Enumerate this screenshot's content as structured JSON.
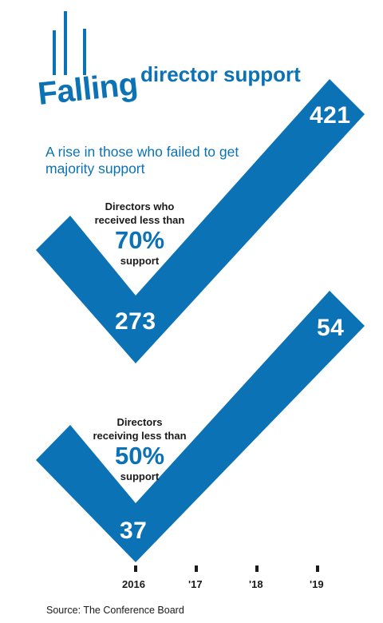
{
  "title": {
    "word1": "Falling",
    "word2": "director support"
  },
  "subtitle": "A rise in those who failed to get majority support",
  "source": "Source: The Conference Board",
  "colors": {
    "accent": "#0b72b5",
    "text": "#1a1a1a"
  },
  "chart_data": [
    {
      "type": "line",
      "series_label": {
        "line1": "Directors who",
        "line2": "received less than",
        "pct": "70%",
        "line3": "support"
      },
      "x": [
        "2016",
        "'19"
      ],
      "values": [
        273,
        421
      ],
      "value_labels": [
        "273",
        "421"
      ]
    },
    {
      "type": "line",
      "series_label": {
        "line1": "Directors",
        "line2": "receiving less than",
        "pct": "50%",
        "line3": "support"
      },
      "x": [
        "2016",
        "'19"
      ],
      "values": [
        37,
        54
      ],
      "value_labels": [
        "37",
        "54"
      ]
    }
  ],
  "axis": {
    "ticks": [
      "2016",
      "'17",
      "'18",
      "'19"
    ]
  }
}
